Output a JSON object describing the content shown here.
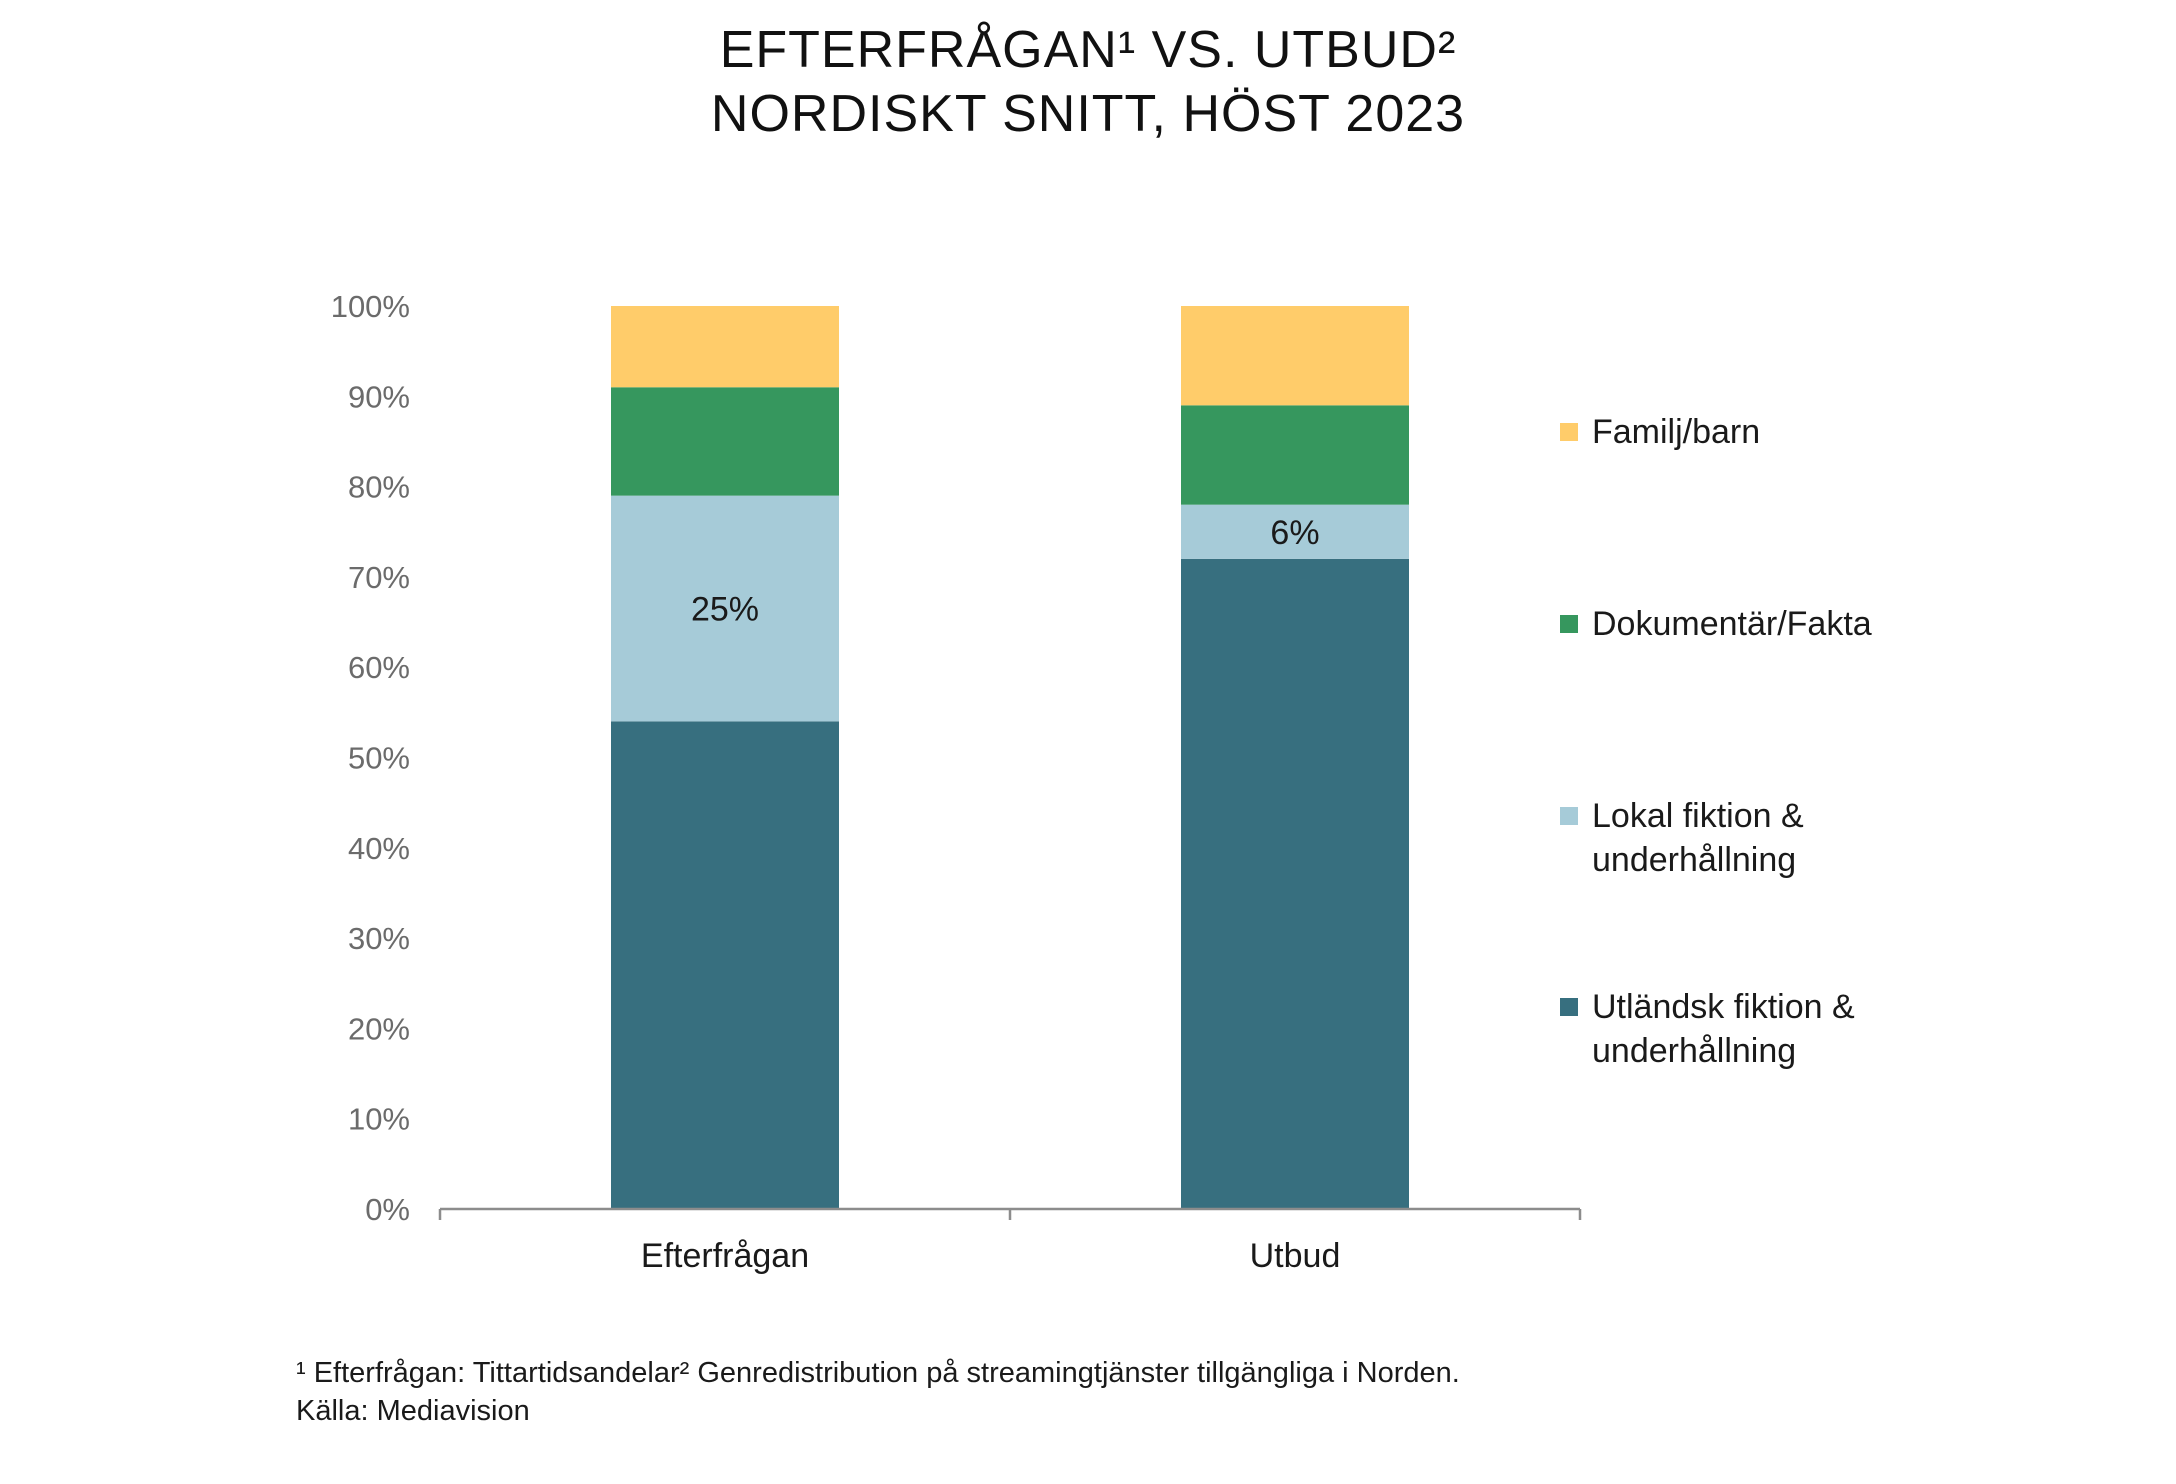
{
  "title": {
    "line1": "EFTERFRÅGAN¹  VS. UTBUD²",
    "line2": "NORDISKT SNITT, HÖST 2023"
  },
  "footnote": {
    "line1": "¹ Efterfrågan: Tittartidsandelar² Genredistribution på streamingtjänster tillgängliga i Norden.",
    "line2": "Källa: Mediavision"
  },
  "chart_data": {
    "type": "bar",
    "stacked": true,
    "categories": [
      "Efterfrågan",
      "Utbud"
    ],
    "ylim": [
      0,
      100
    ],
    "yticks": [
      "0%",
      "10%",
      "20%",
      "30%",
      "40%",
      "50%",
      "60%",
      "70%",
      "80%",
      "90%",
      "100%"
    ],
    "legend_position": "right",
    "series": [
      {
        "name": "Utländsk fiktion & underhållning",
        "color": "#376F7F",
        "values": [
          54,
          72
        ],
        "labels": [
          "",
          ""
        ]
      },
      {
        "name": "Lokal fiktion & underhållning",
        "color": "#A6CBD8",
        "values": [
          25,
          6
        ],
        "labels": [
          "25%",
          "6%"
        ]
      },
      {
        "name": "Dokumentär/Fakta",
        "color": "#36975E",
        "values": [
          12,
          11
        ],
        "labels": [
          "",
          ""
        ]
      },
      {
        "name": "Familj/barn",
        "color": "#FFCC6A",
        "values": [
          9,
          11
        ],
        "labels": [
          "",
          ""
        ]
      }
    ]
  }
}
